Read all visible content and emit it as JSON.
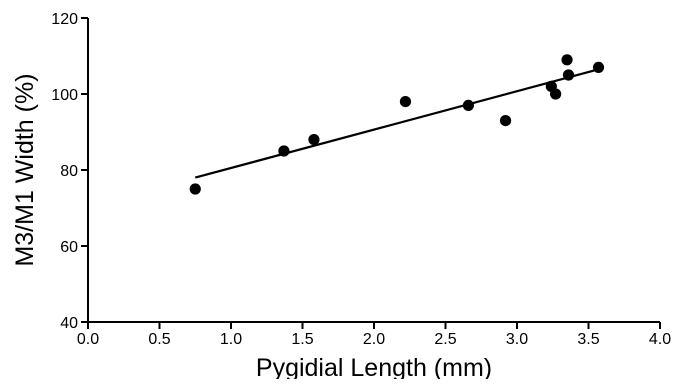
{
  "chart_data": {
    "type": "scatter",
    "title": "",
    "xlabel": "Pygidial Length (mm)",
    "ylabel": "M3/M1 Width (%)",
    "xlim": [
      0,
      4
    ],
    "ylim": [
      40,
      120
    ],
    "xticks": [
      "0.0",
      "0.5",
      "1.0",
      "1.5",
      "2.0",
      "2.5",
      "3.0",
      "3.5",
      "4.0"
    ],
    "yticks": [
      "40",
      "60",
      "80",
      "100",
      "120"
    ],
    "grid": false,
    "legend": "none",
    "series": [
      {
        "points": [
          {
            "x": 0.75,
            "y": 75
          },
          {
            "x": 1.37,
            "y": 85
          },
          {
            "x": 1.58,
            "y": 88
          },
          {
            "x": 2.22,
            "y": 98
          },
          {
            "x": 2.66,
            "y": 97
          },
          {
            "x": 2.92,
            "y": 93
          },
          {
            "x": 3.24,
            "y": 102
          },
          {
            "x": 3.27,
            "y": 100
          },
          {
            "x": 3.35,
            "y": 109
          },
          {
            "x": 3.36,
            "y": 105
          },
          {
            "x": 3.57,
            "y": 107
          }
        ],
        "color": "#000000"
      }
    ],
    "trendline": {
      "x": [
        0.75,
        3.57
      ],
      "y": [
        78,
        106.5
      ],
      "color": "#000000"
    }
  }
}
